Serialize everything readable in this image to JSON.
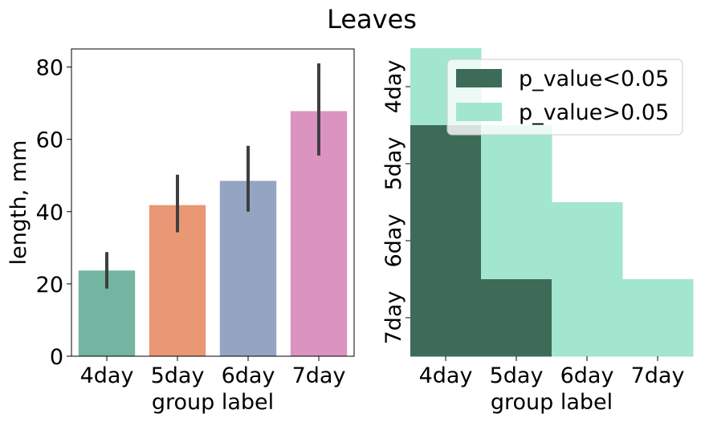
{
  "title": "Leaves",
  "colors": {
    "sig": "#3d6b58",
    "nonsig": "#a2e6d0",
    "axis": "#000000",
    "errorbar": "#3f3f3f"
  },
  "chart_data": [
    {
      "type": "bar",
      "categories": [
        "4day",
        "5day",
        "6day",
        "7day"
      ],
      "values": [
        23.7,
        41.8,
        48.5,
        67.8
      ],
      "error_low": [
        18.7,
        34.3,
        40.0,
        55.5
      ],
      "error_high": [
        28.8,
        50.2,
        58.2,
        81.0
      ],
      "colors": [
        "#73b5a0",
        "#e99775",
        "#94a4c3",
        "#db94bf"
      ],
      "xlabel": "group label",
      "ylabel": "length, mm",
      "ylim": [
        0,
        85
      ],
      "yticks": [
        0,
        20,
        40,
        60,
        80
      ],
      "grid": false
    },
    {
      "type": "heatmap",
      "x_categories": [
        "4day",
        "5day",
        "6day",
        "7day"
      ],
      "y_categories": [
        "4day",
        "5day",
        "6day",
        "7day"
      ],
      "xlabel": "group label",
      "cells": [
        [
          "nonsig",
          null,
          null,
          null
        ],
        [
          "sig",
          "nonsig",
          null,
          null
        ],
        [
          "sig",
          "nonsig",
          "nonsig",
          null
        ],
        [
          "sig",
          "sig",
          "nonsig",
          "nonsig"
        ]
      ],
      "legend": {
        "position": "top-right",
        "entries": [
          {
            "key": "sig",
            "label": "p_value<0.05"
          },
          {
            "key": "nonsig",
            "label": "p_value>0.05"
          }
        ]
      }
    }
  ]
}
